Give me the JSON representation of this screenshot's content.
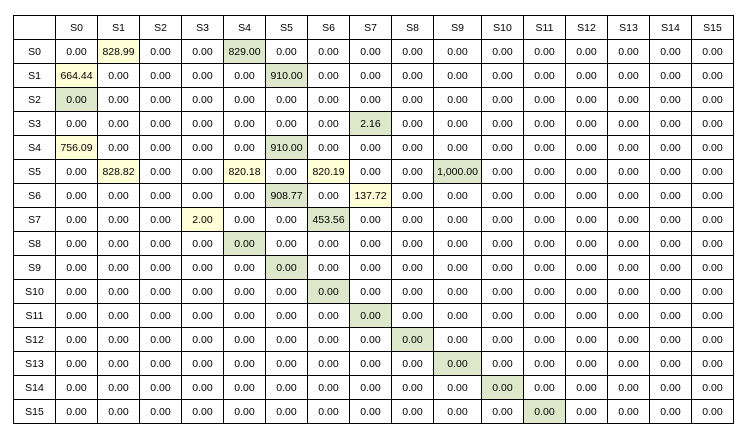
{
  "colors": {
    "yellow": "#ffffd7",
    "green": "#dde8cb",
    "border": "#000000"
  },
  "table": {
    "corner": "",
    "columns": [
      "S0",
      "S1",
      "S2",
      "S3",
      "S4",
      "S5",
      "S6",
      "S7",
      "S8",
      "S9",
      "S10",
      "S11",
      "S12",
      "S13",
      "S14",
      "S15"
    ],
    "rows": [
      {
        "label": "S0",
        "cells": [
          {
            "v": "0.00"
          },
          {
            "v": "828.99",
            "hl": "yellow"
          },
          {
            "v": "0.00"
          },
          {
            "v": "0.00"
          },
          {
            "v": "829.00",
            "hl": "green"
          },
          {
            "v": "0.00"
          },
          {
            "v": "0.00"
          },
          {
            "v": "0.00"
          },
          {
            "v": "0.00"
          },
          {
            "v": "0.00"
          },
          {
            "v": "0.00"
          },
          {
            "v": "0.00"
          },
          {
            "v": "0.00"
          },
          {
            "v": "0.00"
          },
          {
            "v": "0.00"
          },
          {
            "v": "0.00"
          }
        ]
      },
      {
        "label": "S1",
        "cells": [
          {
            "v": "664.44",
            "hl": "yellow"
          },
          {
            "v": "0.00"
          },
          {
            "v": "0.00"
          },
          {
            "v": "0.00"
          },
          {
            "v": "0.00"
          },
          {
            "v": "910.00",
            "hl": "green"
          },
          {
            "v": "0.00"
          },
          {
            "v": "0.00"
          },
          {
            "v": "0.00"
          },
          {
            "v": "0.00"
          },
          {
            "v": "0.00"
          },
          {
            "v": "0.00"
          },
          {
            "v": "0.00"
          },
          {
            "v": "0.00"
          },
          {
            "v": "0.00"
          },
          {
            "v": "0.00"
          }
        ]
      },
      {
        "label": "S2",
        "cells": [
          {
            "v": "0.00",
            "hl": "green"
          },
          {
            "v": "0.00"
          },
          {
            "v": "0.00"
          },
          {
            "v": "0.00"
          },
          {
            "v": "0.00"
          },
          {
            "v": "0.00"
          },
          {
            "v": "0.00"
          },
          {
            "v": "0.00"
          },
          {
            "v": "0.00"
          },
          {
            "v": "0.00"
          },
          {
            "v": "0.00"
          },
          {
            "v": "0.00"
          },
          {
            "v": "0.00"
          },
          {
            "v": "0.00"
          },
          {
            "v": "0.00"
          },
          {
            "v": "0.00"
          }
        ]
      },
      {
        "label": "S3",
        "cells": [
          {
            "v": "0.00"
          },
          {
            "v": "0.00"
          },
          {
            "v": "0.00"
          },
          {
            "v": "0.00"
          },
          {
            "v": "0.00"
          },
          {
            "v": "0.00"
          },
          {
            "v": "0.00"
          },
          {
            "v": "2.16",
            "hl": "green"
          },
          {
            "v": "0.00"
          },
          {
            "v": "0.00"
          },
          {
            "v": "0.00"
          },
          {
            "v": "0.00"
          },
          {
            "v": "0.00"
          },
          {
            "v": "0.00"
          },
          {
            "v": "0.00"
          },
          {
            "v": "0.00"
          }
        ]
      },
      {
        "label": "S4",
        "cells": [
          {
            "v": "756.09",
            "hl": "yellow"
          },
          {
            "v": "0.00"
          },
          {
            "v": "0.00"
          },
          {
            "v": "0.00"
          },
          {
            "v": "0.00"
          },
          {
            "v": "910.00",
            "hl": "green"
          },
          {
            "v": "0.00"
          },
          {
            "v": "0.00"
          },
          {
            "v": "0.00"
          },
          {
            "v": "0.00"
          },
          {
            "v": "0.00"
          },
          {
            "v": "0.00"
          },
          {
            "v": "0.00"
          },
          {
            "v": "0.00"
          },
          {
            "v": "0.00"
          },
          {
            "v": "0.00"
          }
        ]
      },
      {
        "label": "S5",
        "cells": [
          {
            "v": "0.00"
          },
          {
            "v": "828.82",
            "hl": "yellow"
          },
          {
            "v": "0.00"
          },
          {
            "v": "0.00"
          },
          {
            "v": "820.18",
            "hl": "yellow"
          },
          {
            "v": "0.00"
          },
          {
            "v": "820.19",
            "hl": "yellow"
          },
          {
            "v": "0.00"
          },
          {
            "v": "0.00"
          },
          {
            "v": "1,000.00",
            "hl": "green"
          },
          {
            "v": "0.00"
          },
          {
            "v": "0.00"
          },
          {
            "v": "0.00"
          },
          {
            "v": "0.00"
          },
          {
            "v": "0.00"
          },
          {
            "v": "0.00"
          }
        ]
      },
      {
        "label": "S6",
        "cells": [
          {
            "v": "0.00"
          },
          {
            "v": "0.00"
          },
          {
            "v": "0.00"
          },
          {
            "v": "0.00"
          },
          {
            "v": "0.00"
          },
          {
            "v": "908.77",
            "hl": "green"
          },
          {
            "v": "0.00"
          },
          {
            "v": "137.72",
            "hl": "yellow"
          },
          {
            "v": "0.00"
          },
          {
            "v": "0.00"
          },
          {
            "v": "0.00"
          },
          {
            "v": "0.00"
          },
          {
            "v": "0.00"
          },
          {
            "v": "0.00"
          },
          {
            "v": "0.00"
          },
          {
            "v": "0.00"
          }
        ]
      },
      {
        "label": "S7",
        "cells": [
          {
            "v": "0.00"
          },
          {
            "v": "0.00"
          },
          {
            "v": "0.00"
          },
          {
            "v": "2.00",
            "hl": "yellow"
          },
          {
            "v": "0.00"
          },
          {
            "v": "0.00"
          },
          {
            "v": "453.56",
            "hl": "green"
          },
          {
            "v": "0.00"
          },
          {
            "v": "0.00"
          },
          {
            "v": "0.00"
          },
          {
            "v": "0.00"
          },
          {
            "v": "0.00"
          },
          {
            "v": "0.00"
          },
          {
            "v": "0.00"
          },
          {
            "v": "0.00"
          },
          {
            "v": "0.00"
          }
        ]
      },
      {
        "label": "S8",
        "cells": [
          {
            "v": "0.00"
          },
          {
            "v": "0.00"
          },
          {
            "v": "0.00"
          },
          {
            "v": "0.00"
          },
          {
            "v": "0.00",
            "hl": "green"
          },
          {
            "v": "0.00"
          },
          {
            "v": "0.00"
          },
          {
            "v": "0.00"
          },
          {
            "v": "0.00"
          },
          {
            "v": "0.00"
          },
          {
            "v": "0.00"
          },
          {
            "v": "0.00"
          },
          {
            "v": "0.00"
          },
          {
            "v": "0.00"
          },
          {
            "v": "0.00"
          },
          {
            "v": "0.00"
          }
        ]
      },
      {
        "label": "S9",
        "cells": [
          {
            "v": "0.00"
          },
          {
            "v": "0.00"
          },
          {
            "v": "0.00"
          },
          {
            "v": "0.00"
          },
          {
            "v": "0.00"
          },
          {
            "v": "0.00",
            "hl": "green"
          },
          {
            "v": "0.00"
          },
          {
            "v": "0.00"
          },
          {
            "v": "0.00"
          },
          {
            "v": "0.00"
          },
          {
            "v": "0.00"
          },
          {
            "v": "0.00"
          },
          {
            "v": "0.00"
          },
          {
            "v": "0.00"
          },
          {
            "v": "0.00"
          },
          {
            "v": "0.00"
          }
        ]
      },
      {
        "label": "S10",
        "cells": [
          {
            "v": "0.00"
          },
          {
            "v": "0.00"
          },
          {
            "v": "0.00"
          },
          {
            "v": "0.00"
          },
          {
            "v": "0.00"
          },
          {
            "v": "0.00"
          },
          {
            "v": "0.00",
            "hl": "green"
          },
          {
            "v": "0.00"
          },
          {
            "v": "0.00"
          },
          {
            "v": "0.00"
          },
          {
            "v": "0.00"
          },
          {
            "v": "0.00"
          },
          {
            "v": "0.00"
          },
          {
            "v": "0.00"
          },
          {
            "v": "0.00"
          },
          {
            "v": "0.00"
          }
        ]
      },
      {
        "label": "S11",
        "cells": [
          {
            "v": "0.00"
          },
          {
            "v": "0.00"
          },
          {
            "v": "0.00"
          },
          {
            "v": "0.00"
          },
          {
            "v": "0.00"
          },
          {
            "v": "0.00"
          },
          {
            "v": "0.00"
          },
          {
            "v": "0.00",
            "hl": "green"
          },
          {
            "v": "0.00"
          },
          {
            "v": "0.00"
          },
          {
            "v": "0.00"
          },
          {
            "v": "0.00"
          },
          {
            "v": "0.00"
          },
          {
            "v": "0.00"
          },
          {
            "v": "0.00"
          },
          {
            "v": "0.00"
          }
        ]
      },
      {
        "label": "S12",
        "cells": [
          {
            "v": "0.00"
          },
          {
            "v": "0.00"
          },
          {
            "v": "0.00"
          },
          {
            "v": "0.00"
          },
          {
            "v": "0.00"
          },
          {
            "v": "0.00"
          },
          {
            "v": "0.00"
          },
          {
            "v": "0.00"
          },
          {
            "v": "0.00",
            "hl": "green"
          },
          {
            "v": "0.00"
          },
          {
            "v": "0.00"
          },
          {
            "v": "0.00"
          },
          {
            "v": "0.00"
          },
          {
            "v": "0.00"
          },
          {
            "v": "0.00"
          },
          {
            "v": "0.00"
          }
        ]
      },
      {
        "label": "S13",
        "cells": [
          {
            "v": "0.00"
          },
          {
            "v": "0.00"
          },
          {
            "v": "0.00"
          },
          {
            "v": "0.00"
          },
          {
            "v": "0.00"
          },
          {
            "v": "0.00"
          },
          {
            "v": "0.00"
          },
          {
            "v": "0.00"
          },
          {
            "v": "0.00"
          },
          {
            "v": "0.00",
            "hl": "green"
          },
          {
            "v": "0.00"
          },
          {
            "v": "0.00"
          },
          {
            "v": "0.00"
          },
          {
            "v": "0.00"
          },
          {
            "v": "0.00"
          },
          {
            "v": "0.00"
          }
        ]
      },
      {
        "label": "S14",
        "cells": [
          {
            "v": "0.00"
          },
          {
            "v": "0.00"
          },
          {
            "v": "0.00"
          },
          {
            "v": "0.00"
          },
          {
            "v": "0.00"
          },
          {
            "v": "0.00"
          },
          {
            "v": "0.00"
          },
          {
            "v": "0.00"
          },
          {
            "v": "0.00"
          },
          {
            "v": "0.00"
          },
          {
            "v": "0.00",
            "hl": "green"
          },
          {
            "v": "0.00"
          },
          {
            "v": "0.00"
          },
          {
            "v": "0.00"
          },
          {
            "v": "0.00"
          },
          {
            "v": "0.00"
          }
        ]
      },
      {
        "label": "S15",
        "cells": [
          {
            "v": "0.00"
          },
          {
            "v": "0.00"
          },
          {
            "v": "0.00"
          },
          {
            "v": "0.00"
          },
          {
            "v": "0.00"
          },
          {
            "v": "0.00"
          },
          {
            "v": "0.00"
          },
          {
            "v": "0.00"
          },
          {
            "v": "0.00"
          },
          {
            "v": "0.00"
          },
          {
            "v": "0.00"
          },
          {
            "v": "0.00",
            "hl": "green"
          },
          {
            "v": "0.00"
          },
          {
            "v": "0.00"
          },
          {
            "v": "0.00"
          },
          {
            "v": "0.00"
          }
        ]
      }
    ]
  }
}
